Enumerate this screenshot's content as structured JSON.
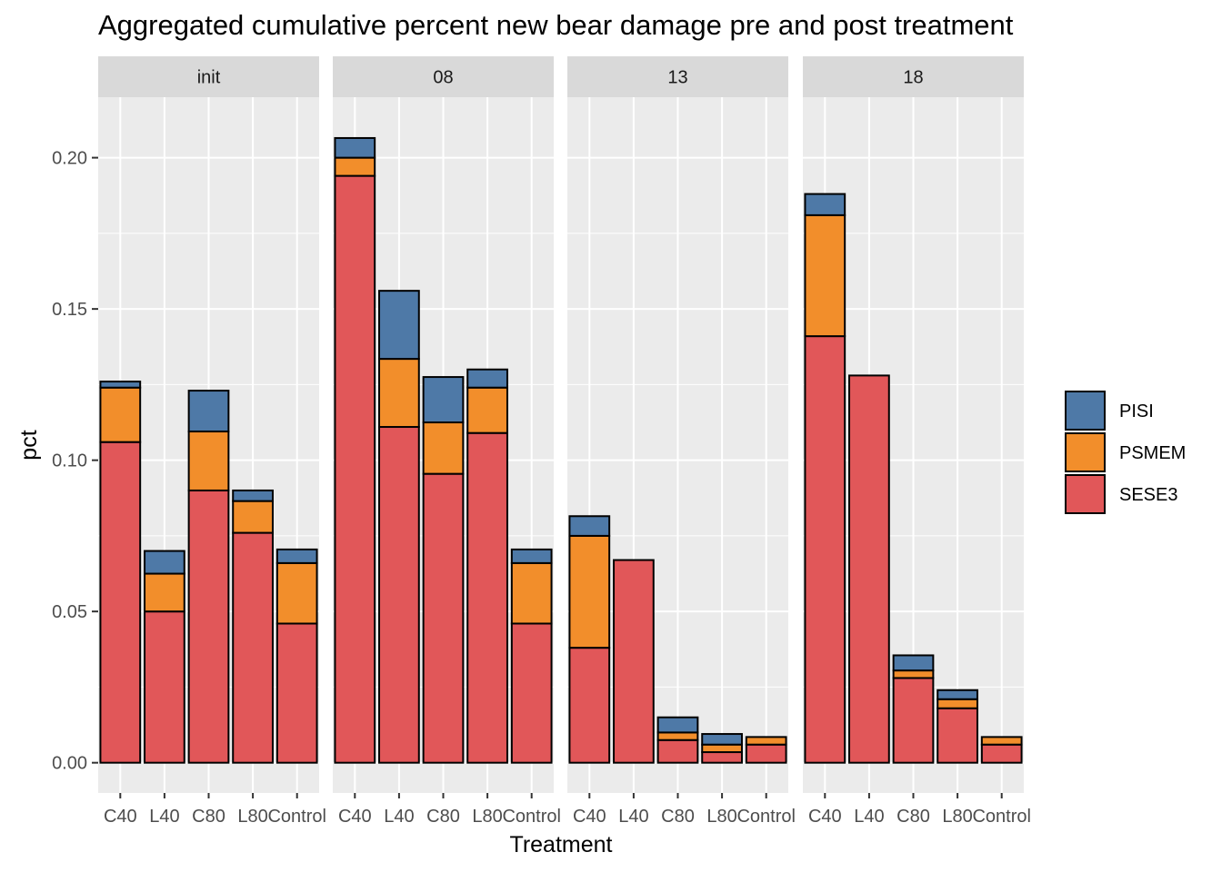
{
  "chart_data": {
    "type": "bar",
    "stacked": true,
    "title": "Aggregated cumulative percent new bear damage pre and post treatment",
    "xlabel": "Treatment",
    "ylabel": "pct",
    "ylim": [
      -0.01,
      0.22
    ],
    "yticks": [
      0.0,
      0.05,
      0.1,
      0.15,
      0.2
    ],
    "ytick_labels": [
      "0.00",
      "0.05",
      "0.10",
      "0.15",
      "0.20"
    ],
    "categories": [
      "C40",
      "L40",
      "C80",
      "L80",
      "Control"
    ],
    "grid": true,
    "legend_position": "right",
    "colors": {
      "PISI": "#4e79a7",
      "PSMEM": "#f28e2b",
      "SESE3": "#e15759",
      "panel_bg": "#ebebeb",
      "strip_bg": "#d9d9d9",
      "grid": "#ffffff"
    },
    "legend": [
      "PISI",
      "PSMEM",
      "SESE3"
    ],
    "stack_order_bottom_to_top": [
      "SESE3",
      "PSMEM",
      "PISI"
    ],
    "facets": [
      {
        "label": "init",
        "series": [
          {
            "name": "SESE3",
            "values": [
              0.106,
              0.05,
              0.09,
              0.076,
              0.046
            ]
          },
          {
            "name": "PSMEM",
            "values": [
              0.018,
              0.0125,
              0.0195,
              0.0105,
              0.02
            ]
          },
          {
            "name": "PISI",
            "values": [
              0.002,
              0.0075,
              0.0135,
              0.0035,
              0.0045
            ]
          }
        ]
      },
      {
        "label": "08",
        "series": [
          {
            "name": "SESE3",
            "values": [
              0.194,
              0.111,
              0.0955,
              0.109,
              0.046
            ]
          },
          {
            "name": "PSMEM",
            "values": [
              0.006,
              0.0225,
              0.017,
              0.015,
              0.02
            ]
          },
          {
            "name": "PISI",
            "values": [
              0.0065,
              0.0225,
              0.015,
              0.006,
              0.0045
            ]
          }
        ]
      },
      {
        "label": "13",
        "series": [
          {
            "name": "SESE3",
            "values": [
              0.038,
              0.067,
              0.0075,
              0.0035,
              0.006
            ]
          },
          {
            "name": "PSMEM",
            "values": [
              0.037,
              0.0,
              0.0025,
              0.0025,
              0.0025
            ]
          },
          {
            "name": "PISI",
            "values": [
              0.0065,
              0.0,
              0.005,
              0.0035,
              0.0
            ]
          }
        ]
      },
      {
        "label": "18",
        "series": [
          {
            "name": "SESE3",
            "values": [
              0.141,
              0.128,
              0.028,
              0.018,
              0.006
            ]
          },
          {
            "name": "PSMEM",
            "values": [
              0.04,
              0.0,
              0.0025,
              0.003,
              0.0025
            ]
          },
          {
            "name": "PISI",
            "values": [
              0.007,
              0.0,
              0.005,
              0.003,
              0.0
            ]
          }
        ]
      }
    ]
  }
}
